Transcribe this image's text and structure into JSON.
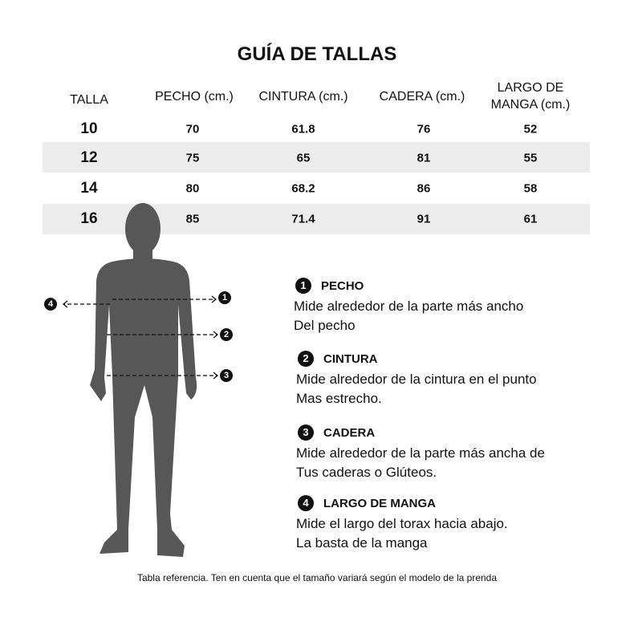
{
  "title": "GUÍA DE TALLAS",
  "table": {
    "headers": [
      "TALLA",
      "PECHO (cm.)",
      "CINTURA (cm.)",
      "CADERA (cm.)",
      "LARGO DE MANGA (cm.)"
    ],
    "header_last_lines": [
      "LARGO DE",
      "MANGA (cm.)"
    ],
    "rows": [
      [
        "10",
        "70",
        "61.8",
        "76",
        "52"
      ],
      [
        "12",
        "75",
        "65",
        "81",
        "55"
      ],
      [
        "14",
        "80",
        "68.2",
        "86",
        "58"
      ],
      [
        "16",
        "85",
        "71.4",
        "91",
        "61"
      ]
    ]
  },
  "markers": [
    "1",
    "2",
    "3",
    "4"
  ],
  "sections": [
    {
      "num": "1",
      "title": "PECHO",
      "lines": [
        "Mide alrededor de la parte más ancho",
        "Del pecho"
      ]
    },
    {
      "num": "2",
      "title": "CINTURA",
      "lines": [
        "Mide alrededor de la cintura en el punto",
        "Mas estrecho."
      ]
    },
    {
      "num": "3",
      "title": "CADERA",
      "lines": [
        "Mide alrededor de la parte más ancha de",
        "Tus caderas o Glúteos."
      ]
    },
    {
      "num": "4",
      "title": "LARGO DE MANGA",
      "lines": [
        "Mide el largo del torax hacia abajo.",
        "La basta de la manga"
      ]
    }
  ],
  "footer": "Tabla referencia. Ten en cuenta que el tamaño variará según el modelo de la prenda",
  "colors": {
    "band": "#ececec",
    "figure": "#575757",
    "text": "#111111"
  }
}
